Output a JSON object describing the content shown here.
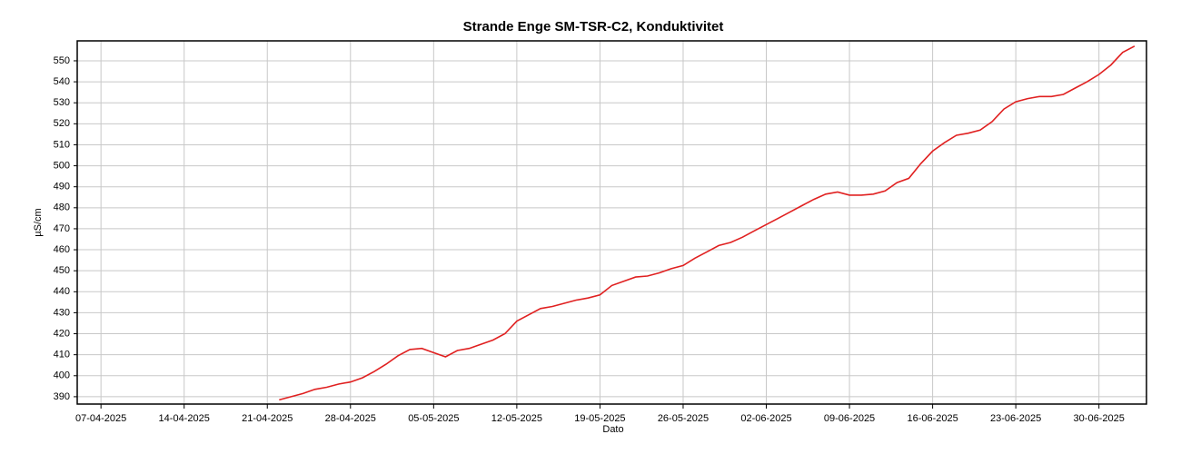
{
  "chart_data": {
    "type": "line",
    "title": "Strande Enge SM-TSR-C2, Konduktivitet",
    "x_label": "Dato",
    "y_label": "µS/cm",
    "x": [
      "22-04-2025",
      "23-04-2025",
      "24-04-2025",
      "25-04-2025",
      "26-04-2025",
      "27-04-2025",
      "28-04-2025",
      "29-04-2025",
      "30-04-2025",
      "01-05-2025",
      "02-05-2025",
      "03-05-2025",
      "04-05-2025",
      "05-05-2025",
      "06-05-2025",
      "07-05-2025",
      "08-05-2025",
      "09-05-2025",
      "10-05-2025",
      "11-05-2025",
      "12-05-2025",
      "13-05-2025",
      "14-05-2025",
      "15-05-2025",
      "16-05-2025",
      "17-05-2025",
      "18-05-2025",
      "19-05-2025",
      "20-05-2025",
      "21-05-2025",
      "22-05-2025",
      "23-05-2025",
      "24-05-2025",
      "25-05-2025",
      "26-05-2025",
      "27-05-2025",
      "28-05-2025",
      "29-05-2025",
      "30-05-2025",
      "31-05-2025",
      "01-06-2025",
      "02-06-2025",
      "03-06-2025",
      "04-06-2025",
      "05-06-2025",
      "06-06-2025",
      "07-06-2025",
      "08-06-2025",
      "09-06-2025",
      "10-06-2025",
      "11-06-2025",
      "12-06-2025",
      "13-06-2025",
      "14-06-2025",
      "15-06-2025",
      "16-06-2025",
      "17-06-2025",
      "18-06-2025",
      "19-06-2025",
      "20-06-2025",
      "21-06-2025",
      "22-06-2025",
      "23-06-2025",
      "24-06-2025",
      "25-06-2025",
      "26-06-2025",
      "27-06-2025",
      "28-06-2025",
      "29-06-2025",
      "30-06-2025",
      "01-07-2025",
      "02-07-2025",
      "03-07-2025"
    ],
    "series": [
      {
        "name": "Konduktivitet",
        "color": "#e02020",
        "values": [
          388.5,
          390,
          391.5,
          393.5,
          394.5,
          396,
          397,
          399,
          402,
          405.5,
          409.5,
          412.5,
          413,
          411,
          409,
          412,
          413,
          415,
          417,
          420,
          426,
          429,
          432,
          433,
          434.5,
          436,
          437,
          438.5,
          443,
          445,
          447,
          447.5,
          449,
          451,
          452.5,
          456,
          459,
          462,
          463.5,
          466,
          469,
          472,
          475,
          478,
          481,
          484,
          486.5,
          487.5,
          486,
          486,
          486.5,
          488,
          492,
          494,
          501,
          507,
          511,
          514.5,
          515.5,
          517,
          521,
          527,
          530.5,
          532,
          533,
          533,
          534,
          537,
          540,
          543.5,
          548,
          554,
          557
        ]
      }
    ],
    "xlim": [
      "05-04-2025",
      "04-07-2025"
    ],
    "xticks": [
      "07-04-2025",
      "14-04-2025",
      "21-04-2025",
      "28-04-2025",
      "05-05-2025",
      "12-05-2025",
      "19-05-2025",
      "26-05-2025",
      "02-06-2025",
      "09-06-2025",
      "16-06-2025",
      "23-06-2025",
      "30-06-2025"
    ],
    "ylim": [
      386.5,
      559.5
    ],
    "yticks": [
      390,
      400,
      410,
      420,
      430,
      440,
      450,
      460,
      470,
      480,
      490,
      500,
      510,
      520,
      530,
      540,
      550
    ],
    "grid": true
  }
}
